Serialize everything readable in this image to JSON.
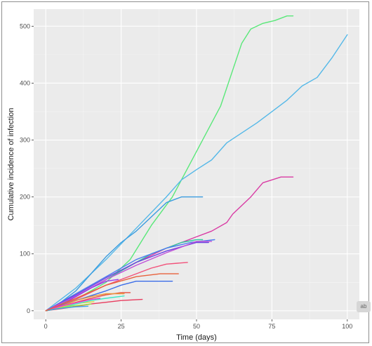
{
  "chart_data": {
    "type": "line",
    "title": "",
    "xlabel": "Time (days)",
    "ylabel": "Cumulative incidence of infection",
    "xlim": [
      -4,
      104
    ],
    "ylim": [
      -15,
      530
    ],
    "x_ticks": [
      0,
      25,
      50,
      75,
      100
    ],
    "y_ticks": [
      0,
      100,
      200,
      300,
      400,
      500
    ],
    "x_tick_labels": [
      "0",
      "25",
      "50",
      "75",
      "100"
    ],
    "y_tick_labels": [
      "0",
      "100",
      "200",
      "300",
      "400",
      "500"
    ],
    "grid": true,
    "legend": "none",
    "series": [
      {
        "color": "#59e879",
        "x": [
          0,
          10,
          20,
          28,
          35,
          42,
          50,
          58,
          65,
          68,
          72,
          76,
          80,
          82
        ],
        "y": [
          0,
          20,
          50,
          90,
          150,
          200,
          280,
          360,
          470,
          495,
          505,
          510,
          518,
          518
        ]
      },
      {
        "color": "#54b8e8",
        "x": [
          0,
          10,
          20,
          30,
          40,
          45,
          50,
          55,
          60,
          70,
          80,
          85,
          90,
          95,
          100
        ],
        "y": [
          0,
          40,
          90,
          145,
          200,
          230,
          248,
          265,
          295,
          330,
          370,
          395,
          410,
          445,
          485
        ]
      },
      {
        "color": "#d93ba4",
        "x": [
          0,
          10,
          20,
          30,
          40,
          50,
          55,
          60,
          62,
          68,
          72,
          75,
          78,
          82
        ],
        "y": [
          0,
          25,
          55,
          85,
          110,
          130,
          140,
          155,
          170,
          200,
          225,
          230,
          235,
          235
        ]
      },
      {
        "color": "#3a9ce0",
        "x": [
          0,
          5,
          10,
          15,
          20,
          25,
          30,
          35,
          40,
          45,
          52
        ],
        "y": [
          0,
          15,
          35,
          65,
          95,
          120,
          140,
          165,
          190,
          200,
          200
        ]
      },
      {
        "color": "#33c8a0",
        "x": [
          0,
          10,
          20,
          30,
          35,
          40,
          45,
          50,
          52
        ],
        "y": [
          0,
          25,
          55,
          85,
          100,
          110,
          120,
          125,
          125
        ]
      },
      {
        "color": "#4a7df0",
        "x": [
          0,
          10,
          20,
          30,
          40,
          48,
          56
        ],
        "y": [
          0,
          30,
          60,
          90,
          110,
          120,
          125
        ]
      },
      {
        "color": "#6b42e0",
        "x": [
          0,
          10,
          20,
          30,
          40,
          50,
          54
        ],
        "y": [
          0,
          28,
          58,
          85,
          105,
          120,
          120
        ]
      },
      {
        "color": "#c04fd8",
        "x": [
          0,
          10,
          20,
          30,
          40,
          50,
          55
        ],
        "y": [
          0,
          26,
          55,
          80,
          102,
          122,
          122
        ]
      },
      {
        "color": "#f2517a",
        "x": [
          0,
          10,
          20,
          30,
          35,
          40,
          47
        ],
        "y": [
          0,
          20,
          45,
          65,
          75,
          82,
          85
        ]
      },
      {
        "color": "#3c6ee8",
        "x": [
          0,
          10,
          20,
          25,
          30,
          35,
          42
        ],
        "y": [
          0,
          18,
          35,
          45,
          52,
          52,
          52
        ]
      },
      {
        "color": "#e84e3c",
        "x": [
          0,
          8,
          15,
          20,
          25,
          28
        ],
        "y": [
          0,
          12,
          22,
          28,
          32,
          32
        ]
      },
      {
        "color": "#e8963c",
        "x": [
          0,
          5,
          10,
          15,
          20,
          26
        ],
        "y": [
          0,
          8,
          18,
          25,
          30,
          30
        ]
      },
      {
        "color": "#e83c5e",
        "x": [
          0,
          8,
          15,
          20,
          25,
          32
        ],
        "y": [
          0,
          6,
          12,
          15,
          18,
          20
        ]
      },
      {
        "color": "#9c3ce8",
        "x": [
          0,
          5,
          10,
          15,
          20,
          24
        ],
        "y": [
          0,
          10,
          25,
          40,
          52,
          55
        ]
      },
      {
        "color": "#e8d13c",
        "x": [
          0,
          4,
          8,
          12,
          16
        ],
        "y": [
          0,
          5,
          10,
          14,
          16
        ]
      },
      {
        "color": "#3ce8c4",
        "x": [
          0,
          5,
          10,
          15,
          20,
          26
        ],
        "y": [
          0,
          5,
          12,
          18,
          22,
          26
        ]
      },
      {
        "color": "#ea3ccf",
        "x": [
          0,
          5,
          10,
          15,
          18
        ],
        "y": [
          0,
          8,
          14,
          20,
          22
        ]
      },
      {
        "color": "#9ae83c",
        "x": [
          0,
          4,
          8,
          12,
          15
        ],
        "y": [
          0,
          4,
          8,
          10,
          12
        ]
      },
      {
        "color": "#3ca6e8",
        "x": [
          0,
          3,
          6,
          10,
          14
        ],
        "y": [
          0,
          3,
          5,
          7,
          8
        ]
      },
      {
        "color": "#e8623c",
        "x": [
          0,
          10,
          20,
          30,
          38,
          44
        ],
        "y": [
          0,
          22,
          45,
          60,
          65,
          65
        ]
      }
    ]
  },
  "aside_tab": "ab"
}
